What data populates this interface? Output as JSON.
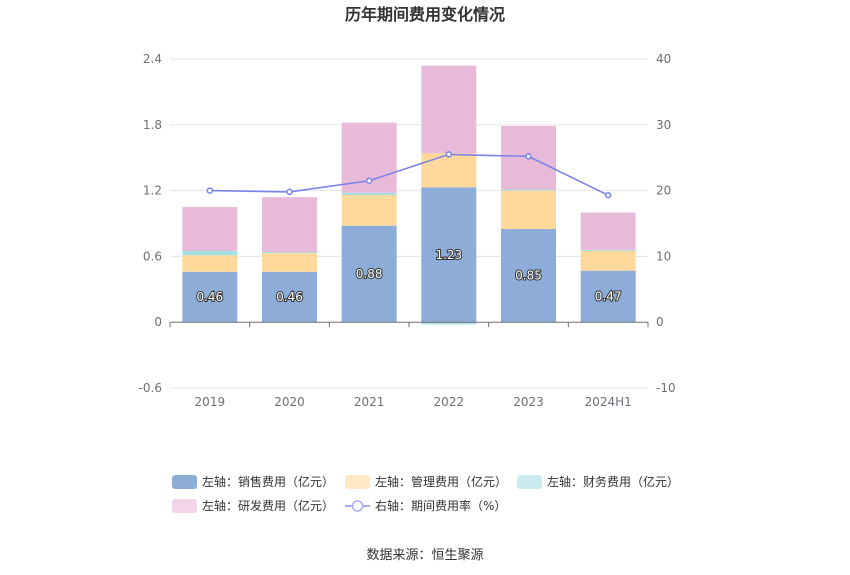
{
  "title": "历年期间费用变化情况",
  "source": "数据来源：恒生聚源",
  "chart_data": {
    "type": "bar",
    "stacked": true,
    "categories": [
      "2019",
      "2020",
      "2021",
      "2022",
      "2023",
      "2024H1"
    ],
    "y_left": {
      "min": -0.6,
      "max": 2.4,
      "ticks": [
        "-0.6",
        "0",
        "0.6",
        "1.2",
        "1.8",
        "2.4"
      ]
    },
    "y_right": {
      "min": -10,
      "max": 40,
      "ticks": [
        "-10",
        "0",
        "10",
        "20",
        "30",
        "40"
      ]
    },
    "grid": true,
    "legend_position": "bottom",
    "series": [
      {
        "name": "左轴：销售费用（亿元）",
        "axis": "left",
        "kind": "bar",
        "color": "#8eacd8",
        "values": [
          0.46,
          0.46,
          0.88,
          1.23,
          0.85,
          0.47
        ],
        "labels": [
          "0.46",
          "0.46",
          "0.88",
          "1.23",
          "0.85",
          "0.47"
        ]
      },
      {
        "name": "左轴：管理费用（亿元）",
        "axis": "left",
        "kind": "bar",
        "color": "#ffd99b",
        "values": [
          0.15,
          0.17,
          0.28,
          0.31,
          0.35,
          0.18
        ]
      },
      {
        "name": "左轴：财务费用（亿元）",
        "axis": "left",
        "kind": "bar",
        "color": "#a6e0e3",
        "values": [
          0.04,
          0.01,
          0.02,
          -0.02,
          0.01,
          0.01
        ]
      },
      {
        "name": "左轴：研发费用（亿元）",
        "axis": "left",
        "kind": "bar",
        "color": "#e8bada",
        "values": [
          0.4,
          0.5,
          0.64,
          0.8,
          0.58,
          0.34
        ]
      },
      {
        "name": "右轴：期间费用率（%）",
        "axis": "right",
        "kind": "line",
        "color": "#7b83e8",
        "values": [
          20.0,
          19.8,
          21.5,
          25.5,
          25.2,
          19.3
        ]
      }
    ]
  }
}
